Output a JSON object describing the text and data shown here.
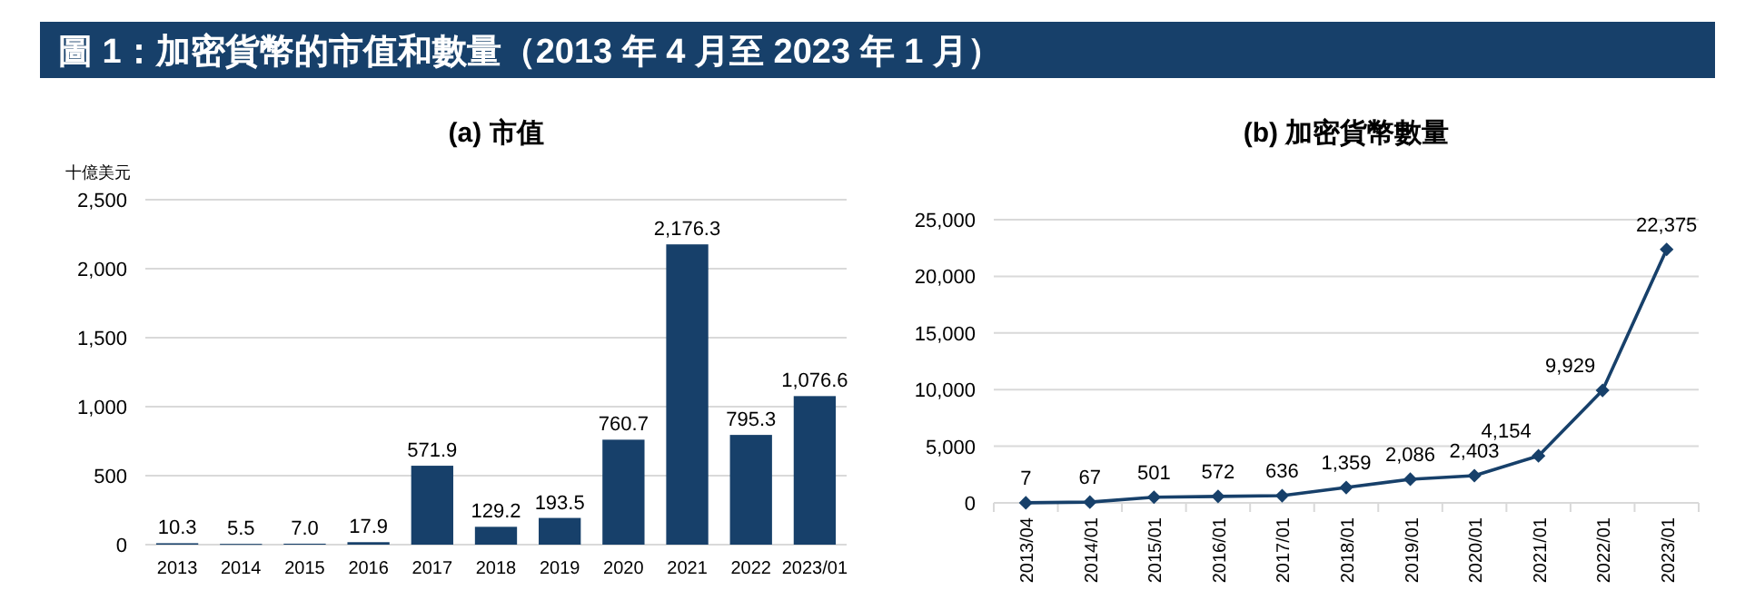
{
  "chart_data": [
    {
      "type": "other",
      "title": "圖 1：加密貨幣的市值和數量（2013 年 4 月至 2023 年 1 月）",
      "color": "#17406a"
    },
    {
      "type": "bar",
      "title": "(a)  市值",
      "ylabel": "十億美元",
      "categories": [
        "2013",
        "2014",
        "2015",
        "2016",
        "2017",
        "2018",
        "2019",
        "2020",
        "2021",
        "2022",
        "2023/01"
      ],
      "values": [
        10.3,
        5.5,
        7.0,
        17.9,
        571.9,
        129.2,
        193.5,
        760.7,
        2176.3,
        795.3,
        1076.6
      ],
      "value_labels": [
        "10.3",
        "5.5",
        "7.0",
        "17.9",
        "571.9",
        "129.2",
        "193.5",
        "760.7",
        "2,176.3",
        "795.3",
        "1,076.6"
      ],
      "color": "#17406a",
      "ylim": [
        0,
        2500
      ],
      "yticks": [
        {
          "value": 0,
          "label": "0"
        },
        {
          "value": 500,
          "label": "500"
        },
        {
          "value": 1000,
          "label": "1,000"
        },
        {
          "value": 1500,
          "label": "1,500"
        },
        {
          "value": 2000,
          "label": "2,000"
        },
        {
          "value": 2500,
          "label": "2,500"
        }
      ],
      "grid": "y"
    },
    {
      "type": "line",
      "title": "(b)  加密貨幣數量",
      "categories": [
        "2013/04",
        "2014/01",
        "2015/01",
        "2016/01",
        "2017/01",
        "2018/01",
        "2019/01",
        "2020/01",
        "2021/01",
        "2022/01",
        "2023/01"
      ],
      "values": [
        7,
        67,
        501,
        572,
        636,
        1359,
        2086,
        2403,
        4154,
        9929,
        22375
      ],
      "value_labels": [
        "7",
        "67",
        "501",
        "572",
        "636",
        "1,359",
        "2,086",
        "2,403",
        "4,154",
        "9,929",
        "22,375"
      ],
      "color": "#17406a",
      "marker": "diamond",
      "ylim": [
        0,
        25000
      ],
      "yticks": [
        {
          "value": 0,
          "label": "0"
        },
        {
          "value": 5000,
          "label": "5,000"
        },
        {
          "value": 10000,
          "label": "10,000"
        },
        {
          "value": 15000,
          "label": "15,000"
        },
        {
          "value": 20000,
          "label": "20,000"
        },
        {
          "value": 25000,
          "label": "25,000"
        }
      ],
      "grid": "y"
    }
  ]
}
